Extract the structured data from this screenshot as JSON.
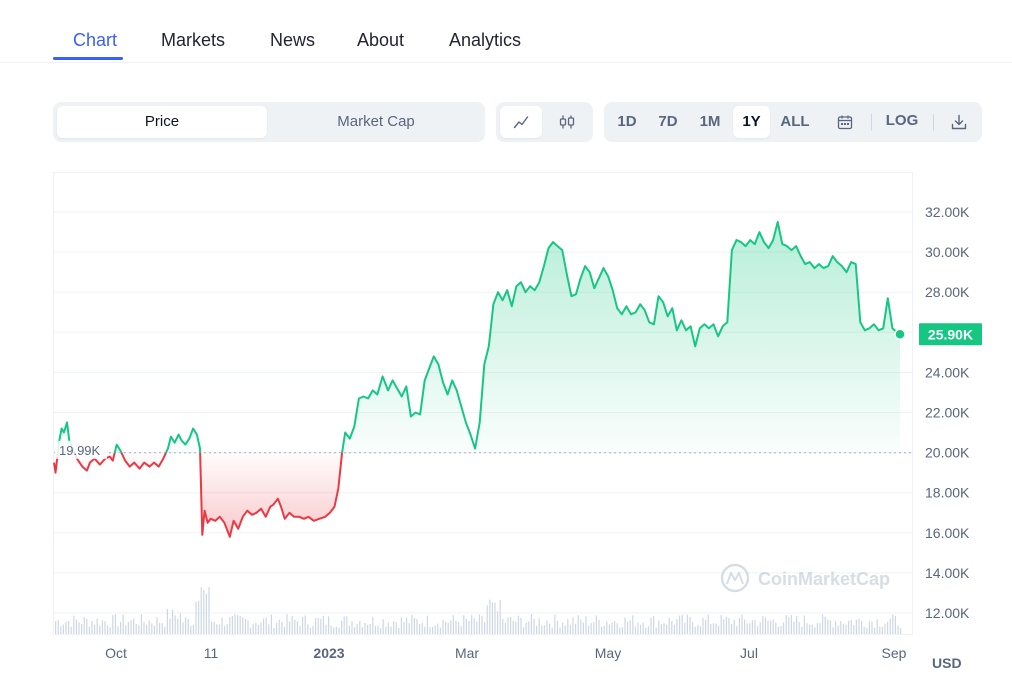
{
  "nav": {
    "tabs": [
      {
        "label": "Chart",
        "active": true
      },
      {
        "label": "Markets"
      },
      {
        "label": "News"
      },
      {
        "label": "About"
      },
      {
        "label": "Analytics"
      }
    ]
  },
  "toolbar": {
    "view_toggle": [
      {
        "label": "Price",
        "active": true
      },
      {
        "label": "Market Cap"
      }
    ],
    "chart_type_icons": [
      "line-chart-icon",
      "candlestick-icon"
    ],
    "ranges": [
      {
        "label": "1D"
      },
      {
        "label": "7D"
      },
      {
        "label": "1M"
      },
      {
        "label": "1Y",
        "active": true
      },
      {
        "label": "ALL"
      }
    ],
    "calendar_icon": "calendar-icon",
    "log_label": "LOG",
    "download_icon": "download-icon"
  },
  "chart_data": {
    "type": "area",
    "baseline": 19.99,
    "baseline_label": "19.99K",
    "current_label": "25.90K",
    "currency": "USD",
    "watermark": "CoinMarketCap",
    "y_ticks": [
      "12.00K",
      "14.00K",
      "16.00K",
      "18.00K",
      "20.00K",
      "22.00K",
      "24.00K",
      "26.00K",
      "28.00K",
      "30.00K",
      "32.00K"
    ],
    "x_ticks": [
      {
        "label": "Oct",
        "x": 1
      },
      {
        "label": "11",
        "x": 2.5
      },
      {
        "label": "2023",
        "x": 4,
        "bold": true
      },
      {
        "label": "Mar",
        "x": 6
      },
      {
        "label": "May",
        "x": 8
      },
      {
        "label": "Jul",
        "x": 10
      },
      {
        "label": "Sep",
        "x": 12
      }
    ],
    "ylim": [
      12,
      33
    ],
    "xlim": [
      0.25,
      12.05
    ],
    "series": [
      {
        "name": "Price",
        "points": [
          [
            0.25,
            19.5
          ],
          [
            0.27,
            19.0
          ],
          [
            0.32,
            20.6
          ],
          [
            0.35,
            21.2
          ],
          [
            0.38,
            21.0
          ],
          [
            0.42,
            21.5
          ],
          [
            0.45,
            20.6
          ],
          [
            0.55,
            19.7
          ],
          [
            0.62,
            19.3
          ],
          [
            0.68,
            19.1
          ],
          [
            0.72,
            19.5
          ],
          [
            0.78,
            19.7
          ],
          [
            0.85,
            19.4
          ],
          [
            0.92,
            19.7
          ],
          [
            0.98,
            19.8
          ],
          [
            1.02,
            19.6
          ],
          [
            1.07,
            20.4
          ],
          [
            1.12,
            20.1
          ],
          [
            1.18,
            19.6
          ],
          [
            1.24,
            19.3
          ],
          [
            1.3,
            19.5
          ],
          [
            1.37,
            19.2
          ],
          [
            1.43,
            19.5
          ],
          [
            1.5,
            19.3
          ],
          [
            1.56,
            19.5
          ],
          [
            1.62,
            19.3
          ],
          [
            1.68,
            19.7
          ],
          [
            1.74,
            20.2
          ],
          [
            1.78,
            20.8
          ],
          [
            1.83,
            20.5
          ],
          [
            1.88,
            20.9
          ],
          [
            1.92,
            20.6
          ],
          [
            1.97,
            20.4
          ],
          [
            2.02,
            20.7
          ],
          [
            2.07,
            21.2
          ],
          [
            2.12,
            20.9
          ],
          [
            2.16,
            20.2
          ],
          [
            2.19,
            15.9
          ],
          [
            2.22,
            17.1
          ],
          [
            2.26,
            16.5
          ],
          [
            2.3,
            16.7
          ],
          [
            2.36,
            16.6
          ],
          [
            2.42,
            16.8
          ],
          [
            2.48,
            16.5
          ],
          [
            2.55,
            15.8
          ],
          [
            2.6,
            16.6
          ],
          [
            2.66,
            16.2
          ],
          [
            2.72,
            16.8
          ],
          [
            2.78,
            17.1
          ],
          [
            2.84,
            16.9
          ],
          [
            2.9,
            17.0
          ],
          [
            2.96,
            17.2
          ],
          [
            3.02,
            16.8
          ],
          [
            3.08,
            17.3
          ],
          [
            3.12,
            17.4
          ],
          [
            3.18,
            17.7
          ],
          [
            3.22,
            17.3
          ],
          [
            3.27,
            16.7
          ],
          [
            3.33,
            17.0
          ],
          [
            3.39,
            16.8
          ],
          [
            3.46,
            16.8
          ],
          [
            3.52,
            16.7
          ],
          [
            3.58,
            16.8
          ],
          [
            3.65,
            16.6
          ],
          [
            3.72,
            16.7
          ],
          [
            3.8,
            16.8
          ],
          [
            3.86,
            17.0
          ],
          [
            3.92,
            17.3
          ],
          [
            3.97,
            18.2
          ],
          [
            4.02,
            20.0
          ],
          [
            4.06,
            21.0
          ],
          [
            4.12,
            20.7
          ],
          [
            4.18,
            21.3
          ],
          [
            4.24,
            22.7
          ],
          [
            4.3,
            22.8
          ],
          [
            4.36,
            22.7
          ],
          [
            4.42,
            23.1
          ],
          [
            4.48,
            22.9
          ],
          [
            4.55,
            23.8
          ],
          [
            4.62,
            23.1
          ],
          [
            4.68,
            23.6
          ],
          [
            4.74,
            23.2
          ],
          [
            4.8,
            22.8
          ],
          [
            4.86,
            23.3
          ],
          [
            4.92,
            21.8
          ],
          [
            4.98,
            22.0
          ],
          [
            5.04,
            21.9
          ],
          [
            5.1,
            23.6
          ],
          [
            5.16,
            24.2
          ],
          [
            5.22,
            24.8
          ],
          [
            5.28,
            24.4
          ],
          [
            5.34,
            23.5
          ],
          [
            5.4,
            22.9
          ],
          [
            5.46,
            23.6
          ],
          [
            5.52,
            23.1
          ],
          [
            5.58,
            22.3
          ],
          [
            5.64,
            21.5
          ],
          [
            5.7,
            20.9
          ],
          [
            5.76,
            20.2
          ],
          [
            5.82,
            21.5
          ],
          [
            5.88,
            24.4
          ],
          [
            5.94,
            25.3
          ],
          [
            6.0,
            27.4
          ],
          [
            6.06,
            28.0
          ],
          [
            6.12,
            27.6
          ],
          [
            6.18,
            28.1
          ],
          [
            6.24,
            27.3
          ],
          [
            6.3,
            28.3
          ],
          [
            6.36,
            28.5
          ],
          [
            6.42,
            28.0
          ],
          [
            6.48,
            28.3
          ],
          [
            6.54,
            28.1
          ],
          [
            6.6,
            28.5
          ],
          [
            6.66,
            29.3
          ],
          [
            6.72,
            30.2
          ],
          [
            6.78,
            30.5
          ],
          [
            6.84,
            30.3
          ],
          [
            6.9,
            30.1
          ],
          [
            6.96,
            28.9
          ],
          [
            7.02,
            27.8
          ],
          [
            7.08,
            27.9
          ],
          [
            7.14,
            28.7
          ],
          [
            7.2,
            29.3
          ],
          [
            7.26,
            29.0
          ],
          [
            7.32,
            28.2
          ],
          [
            7.38,
            28.7
          ],
          [
            7.44,
            29.2
          ],
          [
            7.5,
            28.8
          ],
          [
            7.56,
            28.1
          ],
          [
            7.62,
            27.2
          ],
          [
            7.68,
            26.9
          ],
          [
            7.74,
            27.3
          ],
          [
            7.8,
            26.9
          ],
          [
            7.86,
            27.0
          ],
          [
            7.92,
            27.4
          ],
          [
            7.98,
            27.1
          ],
          [
            8.04,
            26.5
          ],
          [
            8.1,
            26.4
          ],
          [
            8.16,
            27.8
          ],
          [
            8.22,
            27.5
          ],
          [
            8.28,
            26.8
          ],
          [
            8.34,
            27.2
          ],
          [
            8.4,
            26.1
          ],
          [
            8.46,
            26.6
          ],
          [
            8.52,
            26.1
          ],
          [
            8.58,
            26.3
          ],
          [
            8.64,
            25.3
          ],
          [
            8.7,
            26.2
          ],
          [
            8.76,
            26.4
          ],
          [
            8.82,
            26.2
          ],
          [
            8.88,
            26.4
          ],
          [
            8.94,
            25.8
          ],
          [
            9.0,
            26.3
          ],
          [
            9.06,
            26.5
          ],
          [
            9.12,
            30.1
          ],
          [
            9.18,
            30.6
          ],
          [
            9.24,
            30.5
          ],
          [
            9.3,
            30.3
          ],
          [
            9.36,
            30.6
          ],
          [
            9.42,
            30.4
          ],
          [
            9.48,
            31.0
          ],
          [
            9.54,
            30.5
          ],
          [
            9.6,
            30.2
          ],
          [
            9.66,
            30.6
          ],
          [
            9.72,
            31.5
          ],
          [
            9.78,
            30.4
          ],
          [
            9.84,
            30.3
          ],
          [
            9.9,
            30.1
          ],
          [
            9.96,
            30.3
          ],
          [
            10.02,
            29.8
          ],
          [
            10.08,
            29.4
          ],
          [
            10.14,
            29.5
          ],
          [
            10.2,
            29.2
          ],
          [
            10.26,
            29.4
          ],
          [
            10.32,
            29.2
          ],
          [
            10.38,
            29.3
          ],
          [
            10.44,
            29.8
          ],
          [
            10.5,
            29.5
          ],
          [
            10.56,
            29.3
          ],
          [
            10.62,
            29.0
          ],
          [
            10.68,
            29.5
          ],
          [
            10.74,
            29.4
          ],
          [
            10.8,
            26.5
          ],
          [
            10.86,
            26.1
          ],
          [
            10.92,
            26.2
          ],
          [
            10.98,
            26.4
          ],
          [
            11.04,
            26.1
          ],
          [
            11.1,
            26.2
          ],
          [
            11.16,
            27.7
          ],
          [
            11.22,
            26.2
          ],
          [
            11.28,
            26.0
          ],
          [
            11.32,
            25.9
          ]
        ]
      }
    ]
  }
}
